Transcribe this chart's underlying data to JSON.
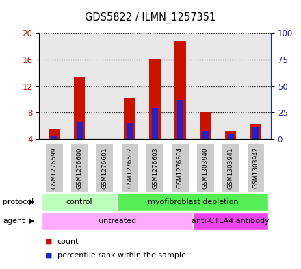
{
  "title": "GDS5822 / ILMN_1257351",
  "samples": [
    "GSM1276599",
    "GSM1276600",
    "GSM1276601",
    "GSM1276602",
    "GSM1276603",
    "GSM1276604",
    "GSM1303940",
    "GSM1303941",
    "GSM1303942"
  ],
  "count_values": [
    5.5,
    13.3,
    4.05,
    10.2,
    16.1,
    18.8,
    8.1,
    5.3,
    6.3
  ],
  "percentile_values": [
    4.4,
    6.6,
    4.05,
    6.5,
    8.7,
    9.9,
    5.3,
    4.7,
    5.8
  ],
  "ylim_left": [
    4,
    20
  ],
  "ylim_right": [
    0,
    100
  ],
  "yticks_left": [
    4,
    8,
    12,
    16,
    20
  ],
  "yticks_right": [
    0,
    25,
    50,
    75,
    100
  ],
  "bar_color": "#cc1100",
  "percentile_color": "#2222cc",
  "bar_width": 0.45,
  "protocol_labels": [
    "control",
    "myofibroblast depletion"
  ],
  "protocol_ranges": [
    [
      0,
      3
    ],
    [
      3,
      9
    ]
  ],
  "protocol_colors": [
    "#bbffbb",
    "#55ee55"
  ],
  "agent_labels": [
    "untreated",
    "anti-CTLA4 antibody"
  ],
  "agent_ranges": [
    [
      0,
      6
    ],
    [
      6,
      9
    ]
  ],
  "agent_colors": [
    "#ffaaff",
    "#ee44ee"
  ],
  "legend_count_color": "#cc1100",
  "legend_pct_color": "#2222cc",
  "grid_color": "black",
  "background_color": "#ffffff",
  "plot_bg_color": "#e8e8e8",
  "sample_box_color": "#cccccc",
  "left_label_color": "#444444"
}
